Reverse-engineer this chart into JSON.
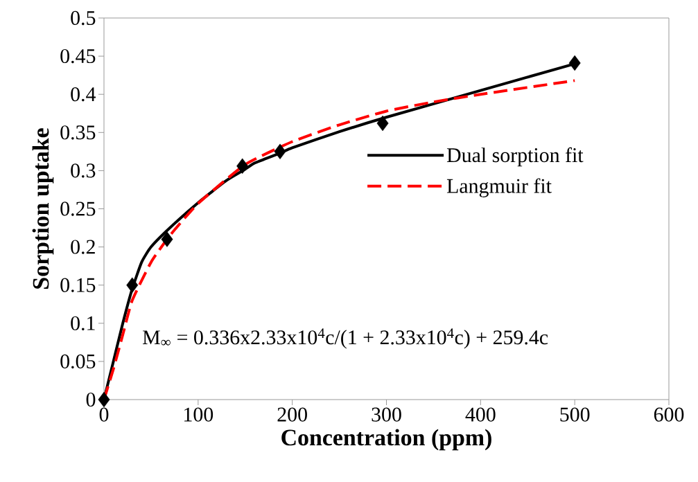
{
  "chart_data": {
    "type": "line",
    "xlabel": "Concentration (ppm)",
    "ylabel": "Sorption uptake",
    "xlim": [
      0,
      600
    ],
    "xticks": [
      0,
      100,
      200,
      300,
      400,
      500,
      600
    ],
    "ylim": [
      0,
      0.5
    ],
    "yticks": [
      0,
      0.05,
      0.1,
      0.15,
      0.2,
      0.25,
      0.3,
      0.35,
      0.4,
      0.45,
      0.5
    ],
    "grid": false,
    "legend": "right",
    "annotations": [
      "M$_{∞}$ = 0.336x2.33x10$^{4}$c/(1 + 2.33x10$^{4}$c)  + 259.4c"
    ],
    "series": [
      {
        "type": "scatter",
        "marker": "diamond",
        "color": "#000000",
        "x": [
          0,
          30,
          67,
          147,
          187,
          296,
          500
        ],
        "values": [
          0,
          0.15,
          0.21,
          0.306,
          0.325,
          0.362,
          0.441
        ]
      },
      {
        "name": "Dual sorption fit",
        "line_style": "solid",
        "color": "#000000",
        "x": [
          0,
          10,
          20,
          30,
          40,
          50,
          70,
          100,
          130,
          150,
          160,
          187,
          200,
          250,
          300,
          400,
          500
        ],
        "values": [
          0,
          0.05,
          0.1,
          0.145,
          0.18,
          0.2,
          0.225,
          0.258,
          0.287,
          0.302,
          0.31,
          0.323,
          0.33,
          0.351,
          0.37,
          0.405,
          0.44
        ]
      },
      {
        "name": "Langmuir fit",
        "line_style": "dashed",
        "color": "#ff0000",
        "x": [
          0,
          10,
          20,
          30,
          50,
          70,
          100,
          150,
          200,
          250,
          300,
          350,
          400,
          500
        ],
        "values": [
          0,
          0.04,
          0.085,
          0.13,
          0.18,
          0.215,
          0.257,
          0.308,
          0.338,
          0.36,
          0.378,
          0.39,
          0.4,
          0.418
        ]
      }
    ]
  }
}
